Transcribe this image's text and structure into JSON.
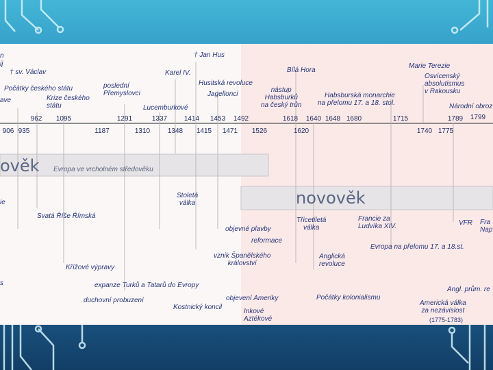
{
  "theme": {
    "bg_top": "#43b6d6",
    "bg_bottom": "#123e66",
    "medieval_bg": "#fbf7f7",
    "modern_bg": "#fbe9e8",
    "label_color": "#26367a"
  },
  "era_medieval": {
    "title": "ověk",
    "subtitle": "Evropa ve vrcholném středověku"
  },
  "era_modern": {
    "title": "novověk"
  },
  "years": [
    "906",
    "935",
    "962",
    "1095",
    "1187",
    "1291",
    "1310",
    "1337",
    "1348",
    "1414",
    "1415",
    "1453",
    "1471",
    "1492",
    "1526",
    "1618",
    "1620",
    "1640",
    "1648",
    "1680",
    "1715",
    "1740",
    "1775",
    "1789",
    "1799"
  ],
  "top_labels": {
    "l1": "n",
    "l2": "ij",
    "l3": "† sv. Václav",
    "l4": "Počátky českého státu",
    "l5": "ave",
    "l6": "Krize českého\nstátu",
    "l7": "poslední\nPřemyslovci",
    "l8": "Karel IV.",
    "l9": "Lucemburkové",
    "l10": "† Jan Hus",
    "l11": "Husitská revoluce",
    "l12": "Jagellonci",
    "l13": "nástup\nHabsburků\nna český trůn",
    "l14": "Bílá Hora",
    "l15": "Habsburská monarchie\nna přelomu 17. a 18. stol.",
    "l16": "Marie Terezie",
    "l17": "Osvícenský\nabsolutismus\nv Rakousku",
    "l18": "Národní obroz"
  },
  "bottom_labels": {
    "b1": "ie",
    "b2": "Svatá Říše Římská",
    "b3": "Stoletá\nválka",
    "b4": "Třicetiletá\nválka",
    "b5": "Francie za\nLudvíka XIV.",
    "b6": "VFR",
    "b7": "Fra\nNap",
    "b8": "objevné plavby",
    "b9": "reformace",
    "b10": "Evropa na přelomu 17. a 18.st.",
    "b11": "vznik Španělského\nkrálovství",
    "b12": "Anglická\nrevoluce",
    "b13": "Křížové výpravy",
    "b14": "expanze Turků a Tatarů do Evropy",
    "b15": "Angl. prům. re",
    "b16": "duchovní probuzení",
    "b17": "objevení Ameriky",
    "b18": "Počátky kolonialismu",
    "b19": "Kostnický koncil",
    "b20": "Americká válka\nza nezávislost",
    "b21": "Inkové\nAztékové",
    "b22": "(1775-1783)",
    "b23": "s"
  }
}
